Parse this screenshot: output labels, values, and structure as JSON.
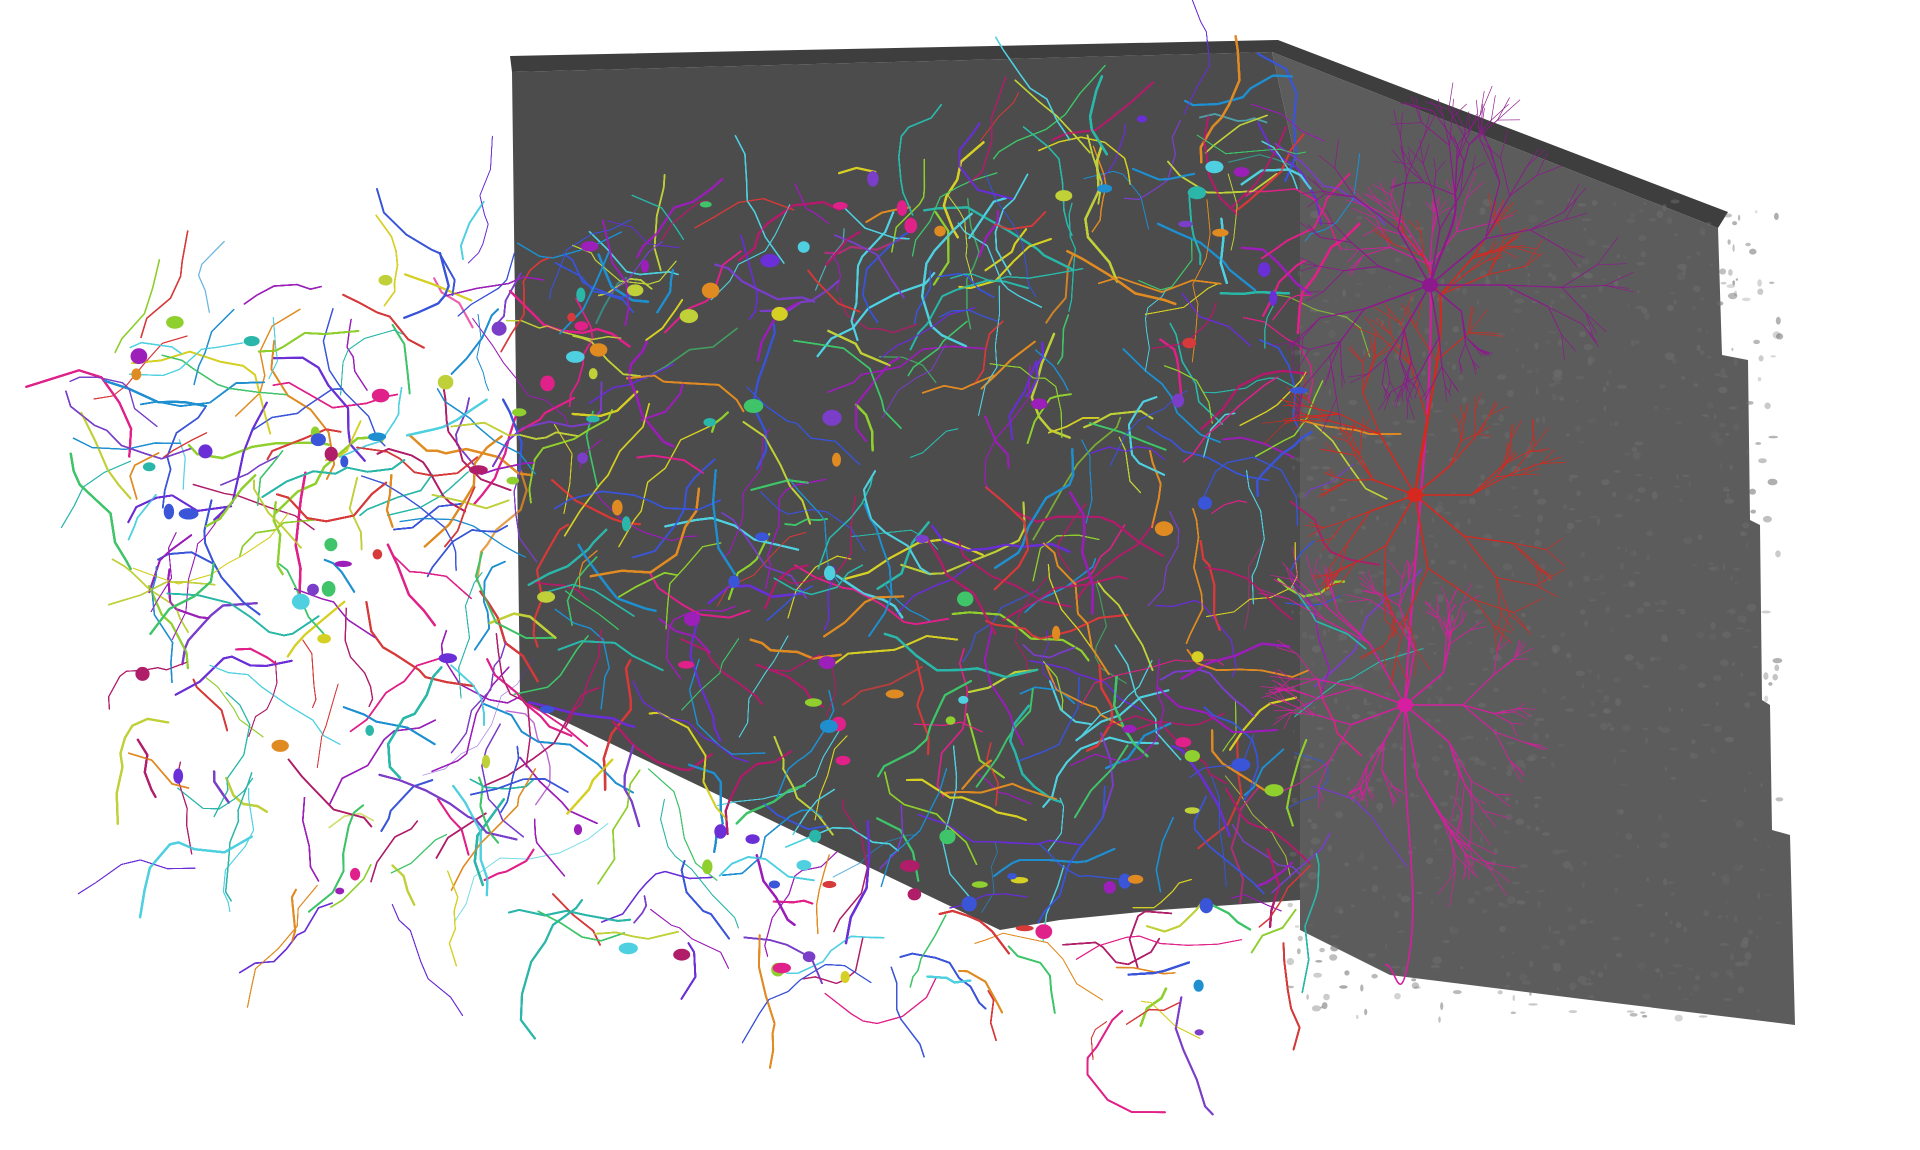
{
  "scene": {
    "background_color": "#ffffff",
    "em_slab_color": "#5a5a5a",
    "em_slab_edge_color": "#3e3e3e",
    "em_slab_texture_color": "#6e6e6e",
    "neurite_palette": [
      "#e0218a",
      "#9b1fb8",
      "#6a2fd6",
      "#3a55d8",
      "#1f8fd0",
      "#2ab7a9",
      "#3fc46a",
      "#8fcf2e",
      "#d6cf24",
      "#e08b22",
      "#d63a3a",
      "#b01e6a",
      "#4fd0e0",
      "#7a3ec8",
      "#c0d038"
    ],
    "highlight_neurons": [
      {
        "color": "#d81ea0"
      },
      {
        "color": "#d6281e"
      },
      {
        "color": "#8c1a8c"
      }
    ]
  }
}
